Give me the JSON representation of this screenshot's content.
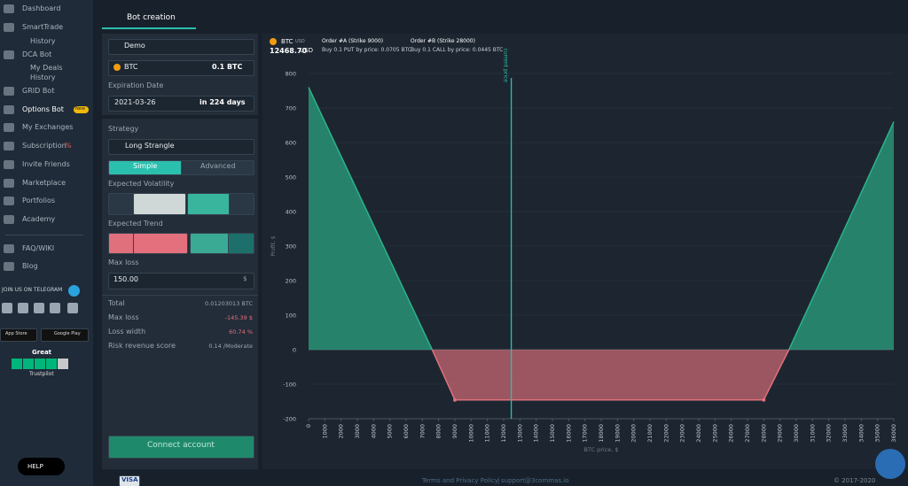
{
  "sidebar": {
    "items": [
      "Dashboard",
      "SmartTrade",
      "History",
      "DCA Bot",
      "My Deals",
      "History",
      "GRID Bot",
      "Options Bot",
      "My Exchanges",
      "Subscription",
      "Invite Friends",
      "Marketplace",
      "Portfolios",
      "Academy",
      "FAQ/WIKI",
      "Blog"
    ],
    "badge": "New",
    "subscription_mark": "%",
    "telegram": "JOIN US ON TELEGRAM",
    "app_store": "App Store",
    "google_play": "Google Play",
    "rating": "Great",
    "trustpilot": "Trustpilot",
    "help": "HELP"
  },
  "form": {
    "tab": "Bot creation",
    "account": "Demo",
    "coin": "BTC",
    "amount": "0.1 BTC",
    "expiration_label": "Expiration Date",
    "expiration_date": "2021-03-26",
    "expiration_days": "in 224 days",
    "strategy_label": "Strategy",
    "strategy": "Long Strangle",
    "mode_simple": "Simple",
    "mode_advanced": "Advanced",
    "volatility_label": "Expected Volatility",
    "trend_label": "Expected Trend",
    "max_loss_label": "Max loss",
    "max_loss_value": "150.00",
    "max_loss_unit": "$",
    "summary": [
      [
        "Total",
        "0.01203013 BTC"
      ],
      [
        "Max loss",
        "-145.39 $"
      ],
      [
        "Loss width",
        "60.74 %"
      ],
      [
        "Risk revenue score",
        "0.14 /Moderate"
      ]
    ],
    "button": "Connect account"
  },
  "chart_header": {
    "pair": "BTC",
    "pair_quote": "USD",
    "price": "12468.70",
    "price_unit": "USD",
    "order_a_title": "Order #A (Strike 9000)",
    "order_a_text": "Buy 0.1 PUT by price: 0.0705 BTC",
    "order_b_title": "Order #B (Strike 28000)",
    "order_b_text": "Buy 0.1 CALL by price: 0.0445 BTC"
  },
  "chart_data": {
    "type": "line",
    "x_label": "BTC price, $",
    "y_label": "Profit, $",
    "annotation": "current price",
    "current_price": 12468.7,
    "x": [
      0,
      7600,
      9000,
      28000,
      29550,
      36000
    ],
    "values": [
      760,
      0,
      -145.39,
      -145.39,
      0,
      660
    ],
    "profit_color": "#2bb38a",
    "loss_color": "#e0707c",
    "grid": true,
    "xlim": [
      0,
      36000
    ],
    "ylim": [
      -200,
      800
    ],
    "xticks": [
      0,
      1000,
      2000,
      3000,
      4000,
      5000,
      6000,
      7000,
      8000,
      9000,
      10000,
      11000,
      12000,
      13000,
      14000,
      15000,
      16000,
      17000,
      18000,
      19000,
      20000,
      21000,
      22000,
      23000,
      24000,
      25000,
      26000,
      27000,
      28000,
      29000,
      30000,
      31000,
      32000,
      33000,
      34000,
      35000,
      36000
    ],
    "yticks": [
      -200,
      -100,
      0,
      100,
      200,
      300,
      400,
      500,
      600,
      700,
      800
    ]
  },
  "footer": {
    "terms": "Terms and Privacy Policy",
    "separator": "|",
    "email": "support@3commas.io",
    "copyright": "© 2017-2020",
    "visa": "VISA"
  }
}
